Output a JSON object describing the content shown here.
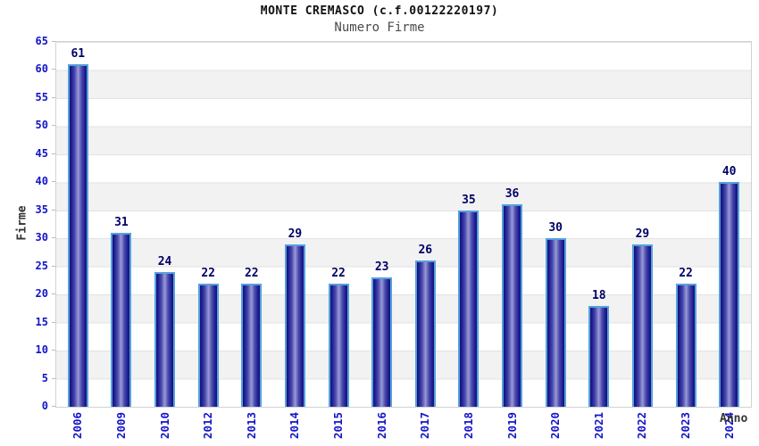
{
  "chart_data": {
    "type": "bar",
    "title": "MONTE CREMASCO (c.f.00122220197)",
    "subtitle": "Numero Firme",
    "xlabel": "Anno",
    "ylabel": "Firme",
    "categories": [
      "2006",
      "2009",
      "2010",
      "2012",
      "2013",
      "2014",
      "2015",
      "2016",
      "2017",
      "2018",
      "2019",
      "2020",
      "2021",
      "2022",
      "2023",
      "2024"
    ],
    "values": [
      61,
      31,
      24,
      22,
      22,
      29,
      22,
      23,
      26,
      35,
      36,
      30,
      18,
      29,
      22,
      40
    ],
    "ylim": [
      0,
      65
    ],
    "ytick_step": 5,
    "grid": "horizontal-bands-alternating",
    "legend_position": "none",
    "colors": {
      "bar_border": "#55a1de",
      "bar_edge": "#131370",
      "bar_center": "#9a9ad8",
      "axis_tick_label": "#1414c8",
      "value_label": "#000066",
      "band_alt": "#f2f2f2",
      "grid_line": "#e2e2e2",
      "axis_title_text": "#333333",
      "title_text": "#111111",
      "subtitle_text": "#4a4a4a"
    }
  }
}
